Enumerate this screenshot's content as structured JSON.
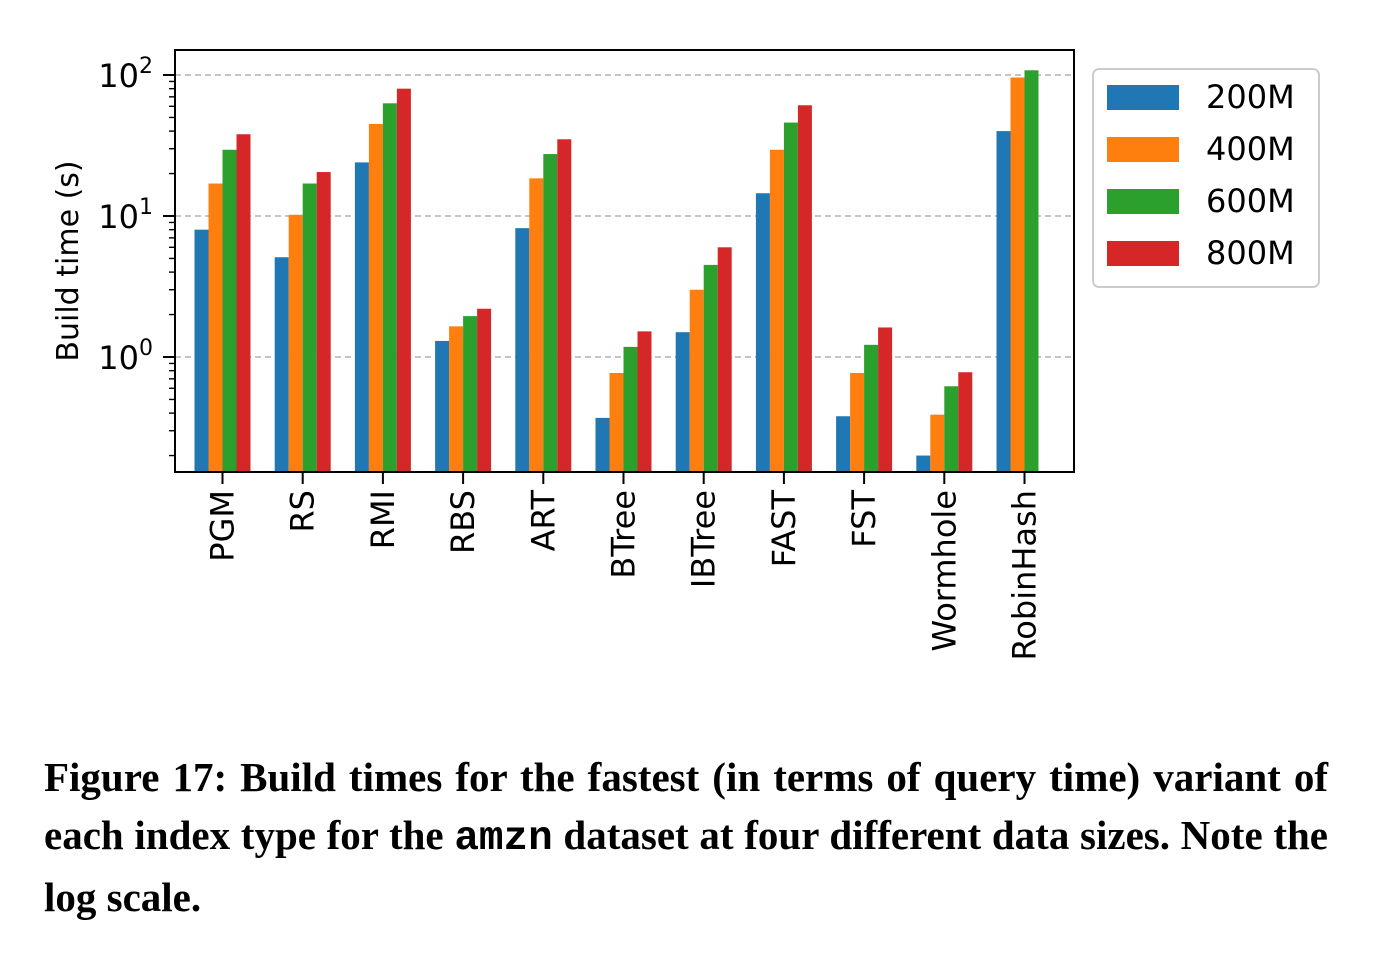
{
  "chart_data": {
    "type": "bar",
    "scale": "log",
    "ylabel": "Build time (s)",
    "yticks": [
      {
        "value": 1,
        "base": "10",
        "exp": "0"
      },
      {
        "value": 10,
        "base": "10",
        "exp": "1"
      },
      {
        "value": 100,
        "base": "10",
        "exp": "2"
      }
    ],
    "ylim": [
      0.16,
      160
    ],
    "grid": "horizontal dashed at major ticks",
    "legend_position": "outside-right-top",
    "categories": [
      "PGM",
      "RS",
      "RMI",
      "RBS",
      "ART",
      "BTree",
      "IBTree",
      "FAST",
      "FST",
      "Wormhole",
      "RobinHash"
    ],
    "series": [
      {
        "name": "200M",
        "color": "#1f77b4",
        "values": [
          8.0,
          5.1,
          24,
          1.3,
          8.2,
          0.37,
          1.5,
          14.5,
          0.38,
          0.2,
          40
        ]
      },
      {
        "name": "400M",
        "color": "#ff7f0e",
        "values": [
          17,
          10.2,
          45,
          1.65,
          18.5,
          0.77,
          3.0,
          29.5,
          0.77,
          0.39,
          96
        ]
      },
      {
        "name": "600M",
        "color": "#2ca02c",
        "values": [
          29.5,
          17,
          63,
          1.95,
          27.5,
          1.18,
          4.5,
          46,
          1.22,
          0.62,
          108
        ]
      },
      {
        "name": "800M",
        "color": "#d62728",
        "values": [
          38,
          20.5,
          80,
          2.2,
          35,
          1.52,
          6.0,
          61,
          1.62,
          0.78,
          null
        ]
      }
    ]
  },
  "caption": {
    "part1": "Figure 17: Build times for the fastest (in terms of query time) variant of each index type for the ",
    "code": "amzn",
    "part2": " dataset at four different data sizes. Note the log scale."
  }
}
